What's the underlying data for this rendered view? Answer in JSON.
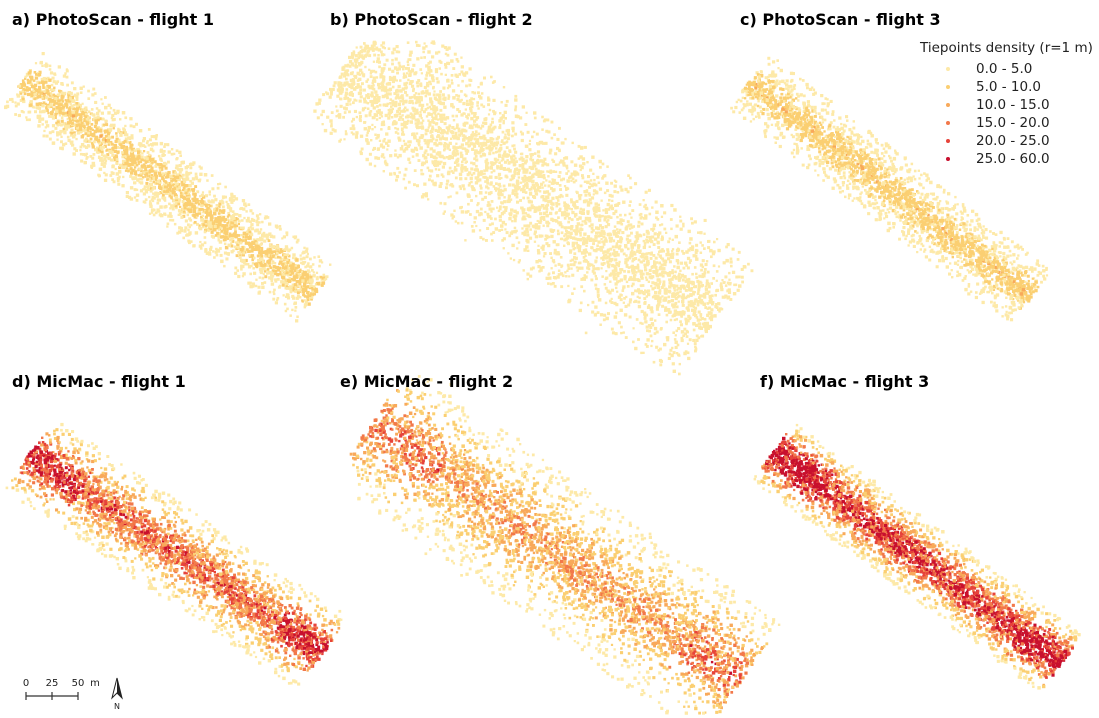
{
  "panels": [
    {
      "id": "a",
      "title": "a) PhotoScan - flight 1"
    },
    {
      "id": "b",
      "title": "b) PhotoScan - flight 2"
    },
    {
      "id": "c",
      "title": "c) PhotoScan - flight 3"
    },
    {
      "id": "d",
      "title": "d) MicMac  - flight 1"
    },
    {
      "id": "e",
      "title": "e) MicMac  - flight 2"
    },
    {
      "id": "f",
      "title": "f) MicMac  - flight 3"
    }
  ],
  "legend": {
    "title": "Tiepoints density (r=1 m)",
    "classes": [
      {
        "label": "0.0 - 5.0",
        "color": "#fde9a8"
      },
      {
        "label": "5.0 - 10.0",
        "color": "#fbcf72"
      },
      {
        "label": "10.0 - 15.0",
        "color": "#f8a95a"
      },
      {
        "label": "15.0 - 20.0",
        "color": "#f2784a"
      },
      {
        "label": "20.0 - 25.0",
        "color": "#e6433a"
      },
      {
        "label": "25.0 - 60.0",
        "color": "#c8102e"
      }
    ]
  },
  "scalebar": {
    "ticks": [
      "0",
      "25",
      "50"
    ],
    "unit": "m",
    "north_label": "N"
  }
}
